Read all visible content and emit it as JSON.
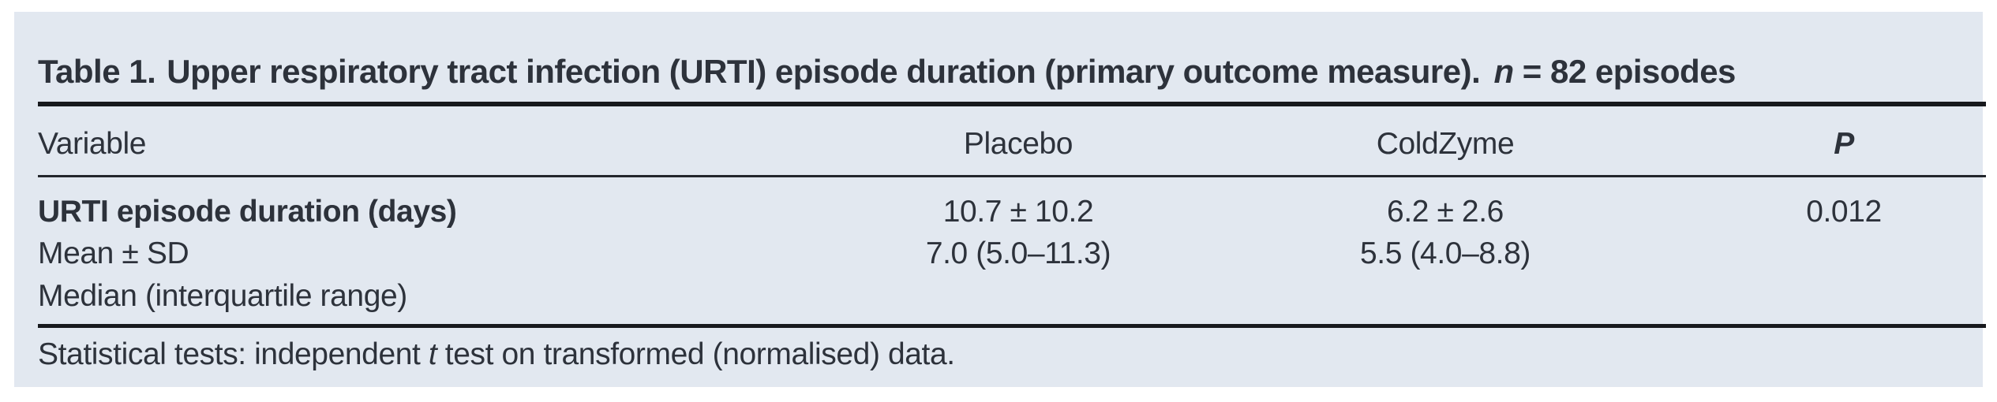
{
  "table": {
    "title": {
      "label": "Table 1.",
      "main": "Upper respiratory tract infection (URTI) episode duration (primary outcome measure).",
      "n_var": "n",
      "n_rest": "= 82 episodes"
    },
    "columns": {
      "variable": "Variable",
      "placebo": "Placebo",
      "coldzyme": "ColdZyme",
      "p": "P"
    },
    "rows": [
      {
        "label": "URTI episode duration (days)",
        "placebo": "10.7 ± 10.2",
        "coldzyme": "6.2 ± 2.6",
        "p": "0.012"
      },
      {
        "label": "Mean ± SD",
        "placebo": "7.0 (5.0–11.3)",
        "coldzyme": "5.5 (4.0–8.8)",
        "p": ""
      },
      {
        "label": "Median (interquartile range)",
        "placebo": "",
        "coldzyme": "",
        "p": ""
      }
    ],
    "footnote": {
      "pre": "Statistical tests: independent ",
      "italic": "t",
      "post": " test on transformed (normalised) data."
    }
  },
  "colors": {
    "panel_bg": "#e2e8f0",
    "text": "#2d323b",
    "rule": "#17191d"
  }
}
